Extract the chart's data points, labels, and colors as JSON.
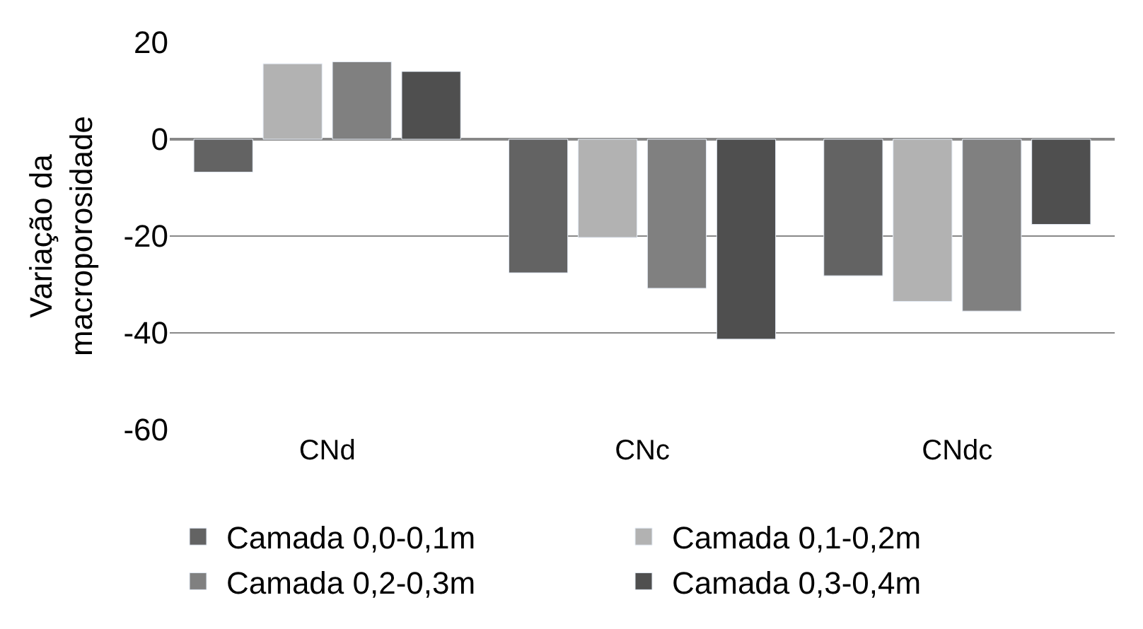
{
  "chart_data": {
    "type": "bar",
    "ylabel": "Variação da\nmacroporosidade",
    "categories": [
      "CNd",
      "CNc",
      "CNdc"
    ],
    "series": [
      {
        "name": "Camada 0,0-0,1m",
        "color": "#636363",
        "values": [
          -6.8,
          -27.6,
          -28.2
        ]
      },
      {
        "name": "Camada 0,1-0,2m",
        "color": "#b2b2b2",
        "values": [
          15.6,
          -20.3,
          -33.5
        ]
      },
      {
        "name": "Camada 0,2-0,3m",
        "color": "#808080",
        "values": [
          16,
          -30.8,
          -35.5
        ]
      },
      {
        "name": "Camada 0,3-0,4m",
        "color": "#4f4f4f",
        "values": [
          14,
          -41.3,
          -17.6
        ]
      }
    ],
    "ylim": [
      -60,
      20
    ],
    "yticks": [
      -60,
      -40,
      -20,
      0,
      20
    ],
    "grid": "y",
    "legend": "bottom"
  }
}
